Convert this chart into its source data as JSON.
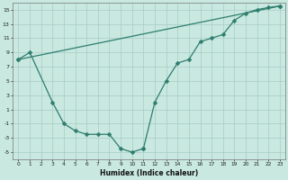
{
  "line1_x": [
    0,
    1,
    3,
    4,
    5,
    6,
    7,
    8,
    9,
    10,
    11
  ],
  "line1_y": [
    8,
    9,
    2,
    -1,
    -2,
    -2.5,
    -2.5,
    -2.5,
    -4.5,
    -5,
    -4.5
  ],
  "line2_x": [
    0,
    23
  ],
  "line2_y": [
    8,
    15.5
  ],
  "line3_x": [
    11,
    12,
    13,
    14,
    15,
    16,
    17,
    18,
    19,
    20,
    21,
    22,
    23
  ],
  "line3_y": [
    -4.5,
    2,
    5,
    7.5,
    8,
    10.5,
    11,
    11.5,
    13.5,
    14.5,
    15.0,
    15.3,
    15.5
  ],
  "color": "#2e7d6e",
  "bg_color": "#c8e8e0",
  "grid_color": "#a8ccc4",
  "xlabel": "Humidex (Indice chaleur)",
  "xlim": [
    -0.5,
    23.5
  ],
  "ylim": [
    -6,
    16
  ],
  "yticks": [
    -5,
    -3,
    -1,
    1,
    3,
    5,
    7,
    9,
    11,
    13,
    15
  ],
  "xticks": [
    0,
    1,
    2,
    3,
    4,
    5,
    6,
    7,
    8,
    9,
    10,
    11,
    12,
    13,
    14,
    15,
    16,
    17,
    18,
    19,
    20,
    21,
    22,
    23
  ],
  "marker": "D",
  "markersize": 2.5,
  "linewidth": 0.9
}
